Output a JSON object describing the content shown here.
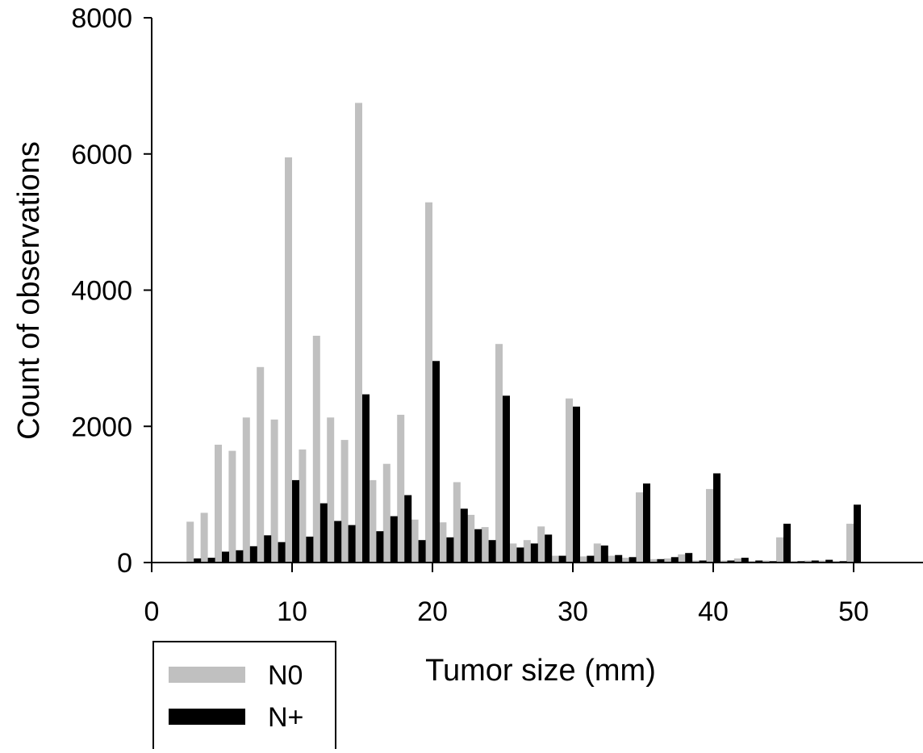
{
  "chart_data": {
    "type": "bar",
    "title": "",
    "xlabel": "Tumor size (mm)",
    "ylabel": "Count of observations",
    "xlim": [
      0,
      55
    ],
    "ylim": [
      0,
      8000
    ],
    "x_ticks": [
      "0",
      "10",
      "20",
      "30",
      "40",
      "50"
    ],
    "y_ticks": [
      "0",
      "2000",
      "4000",
      "6000",
      "8000"
    ],
    "grid": false,
    "legend_position": "bottom-left",
    "categories": [
      3,
      4,
      5,
      6,
      7,
      8,
      9,
      10,
      11,
      12,
      13,
      14,
      15,
      16,
      17,
      18,
      19,
      20,
      21,
      22,
      23,
      24,
      25,
      26,
      27,
      28,
      29,
      30,
      31,
      32,
      33,
      34,
      35,
      36,
      37,
      38,
      39,
      40,
      41,
      42,
      43,
      44,
      45,
      46,
      47,
      48,
      49,
      50
    ],
    "series": [
      {
        "name": "N0",
        "color": "#c0c0c0",
        "values": [
          600,
          730,
          1730,
          1640,
          2130,
          2870,
          2100,
          5950,
          1660,
          3330,
          2130,
          1800,
          6750,
          1210,
          1450,
          2170,
          630,
          5290,
          590,
          1180,
          700,
          520,
          3210,
          280,
          330,
          530,
          100,
          2410,
          90,
          280,
          100,
          70,
          1030,
          50,
          60,
          120,
          30,
          1080,
          30,
          60,
          20,
          30,
          370,
          20,
          30,
          30,
          20,
          570
        ]
      },
      {
        "name": "N+",
        "color": "#000000",
        "values": [
          60,
          70,
          160,
          180,
          240,
          400,
          300,
          1210,
          380,
          870,
          610,
          550,
          2470,
          460,
          680,
          990,
          330,
          2960,
          370,
          790,
          490,
          330,
          2450,
          220,
          280,
          410,
          100,
          2290,
          100,
          250,
          110,
          80,
          1160,
          50,
          80,
          140,
          30,
          1310,
          30,
          70,
          30,
          20,
          570,
          20,
          30,
          40,
          20,
          850
        ]
      }
    ]
  }
}
